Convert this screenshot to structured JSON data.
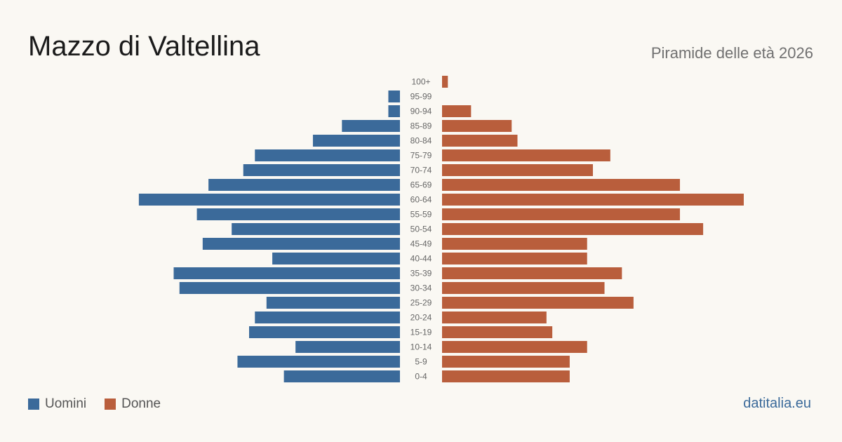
{
  "header": {
    "title": "Mazzo di Valtellina",
    "subtitle": "Piramide delle età 2026"
  },
  "legend": {
    "items": [
      {
        "label": "Uomini",
        "color": "#3b6a9a"
      },
      {
        "label": "Donne",
        "color": "#b95e3c"
      }
    ]
  },
  "footer": {
    "source": "datitalia.eu"
  },
  "chart_data": {
    "type": "bar",
    "orientation": "horizontal-pyramid",
    "categories": [
      "100+",
      "95-99",
      "90-94",
      "85-89",
      "80-84",
      "75-79",
      "70-74",
      "65-69",
      "60-64",
      "55-59",
      "50-54",
      "45-49",
      "40-44",
      "35-39",
      "30-34",
      "25-29",
      "20-24",
      "15-19",
      "10-14",
      "5-9",
      "0-4"
    ],
    "series": [
      {
        "name": "Uomini",
        "color": "#3b6a9a",
        "values": [
          0,
          2,
          2,
          10,
          15,
          25,
          27,
          33,
          45,
          35,
          29,
          34,
          22,
          39,
          38,
          23,
          25,
          26,
          18,
          28,
          20
        ]
      },
      {
        "name": "Donne",
        "color": "#b95e3c",
        "values": [
          1,
          0,
          5,
          12,
          13,
          29,
          26,
          41,
          52,
          41,
          45,
          25,
          25,
          31,
          28,
          33,
          18,
          19,
          25,
          22,
          22
        ]
      }
    ],
    "xlim": [
      0,
      52
    ],
    "grid": false,
    "legend_position": "bottom-left"
  }
}
